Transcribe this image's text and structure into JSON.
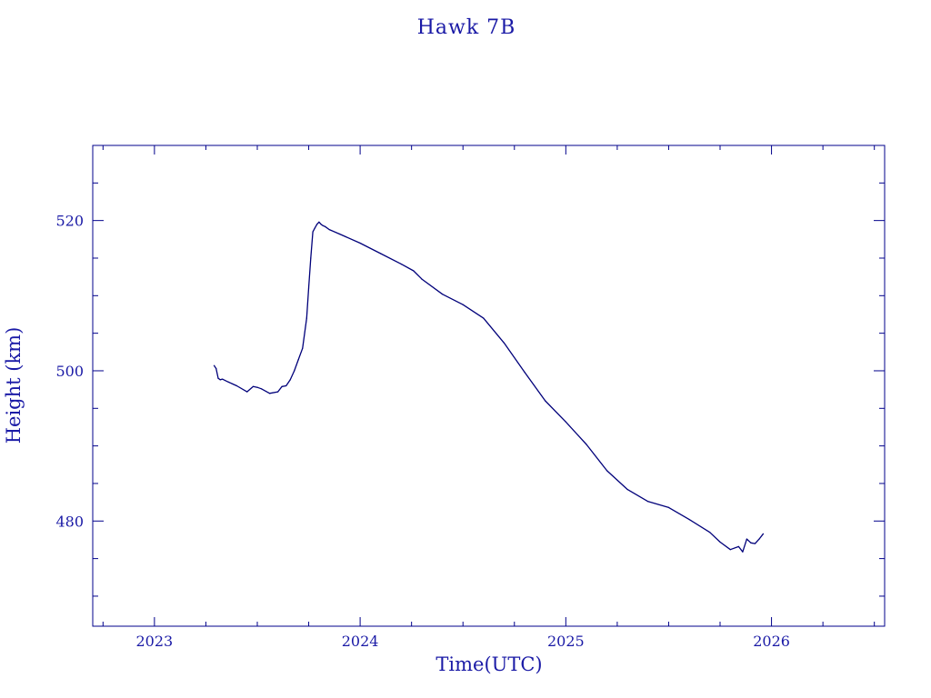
{
  "chart_data": {
    "type": "line",
    "title": "Hawk 7B",
    "xlabel": "Time(UTC)",
    "ylabel": "Height (km)",
    "xlim": [
      2022.7,
      2026.55
    ],
    "ylim": [
      466,
      530
    ],
    "x_major_ticks": [
      2023,
      2024,
      2025,
      2026
    ],
    "x_tick_labels": [
      "2023",
      "2024",
      "2025",
      "2026"
    ],
    "y_major_ticks": [
      480,
      500,
      520
    ],
    "y_tick_labels": [
      "480",
      "500",
      "520"
    ],
    "grid": false,
    "color": "#00007a",
    "series": [
      {
        "x": [
          2023.29,
          2023.3,
          2023.31,
          2023.32,
          2023.33,
          2023.36,
          2023.4,
          2023.45,
          2023.48,
          2023.5,
          2023.52,
          2023.56,
          2023.6,
          2023.62,
          2023.64,
          2023.66,
          2023.68,
          2023.7,
          2023.72,
          2023.74,
          2023.75,
          2023.76,
          2023.77,
          2023.78,
          2023.79,
          2023.8,
          2023.81,
          2023.82,
          2023.83,
          2023.85,
          2023.9,
          2024.0,
          2024.1,
          2024.2,
          2024.26,
          2024.3,
          2024.4,
          2024.5,
          2024.6,
          2024.7,
          2024.8,
          2024.9,
          2025.0,
          2025.1,
          2025.2,
          2025.3,
          2025.4,
          2025.5,
          2025.6,
          2025.7,
          2025.75,
          2025.8,
          2025.84,
          2025.86,
          2025.88,
          2025.9,
          2025.92,
          2025.94,
          2025.96
        ],
        "y": [
          500.7,
          500.3,
          499.0,
          498.8,
          498.9,
          498.5,
          498.0,
          497.2,
          497.9,
          497.8,
          497.6,
          497.0,
          497.2,
          497.9,
          498.0,
          498.8,
          500.0,
          501.5,
          503.0,
          507.0,
          511.0,
          515.0,
          518.5,
          519.0,
          519.5,
          519.8,
          519.5,
          519.3,
          519.2,
          518.8,
          518.2,
          517.0,
          515.6,
          514.2,
          513.3,
          512.2,
          510.2,
          508.8,
          507.0,
          503.7,
          499.8,
          496.0,
          493.2,
          490.2,
          486.7,
          484.2,
          482.6,
          481.8,
          480.2,
          478.5,
          477.2,
          476.2,
          476.6,
          475.9,
          477.6,
          477.1,
          477.0,
          477.6,
          478.3
        ]
      }
    ]
  }
}
